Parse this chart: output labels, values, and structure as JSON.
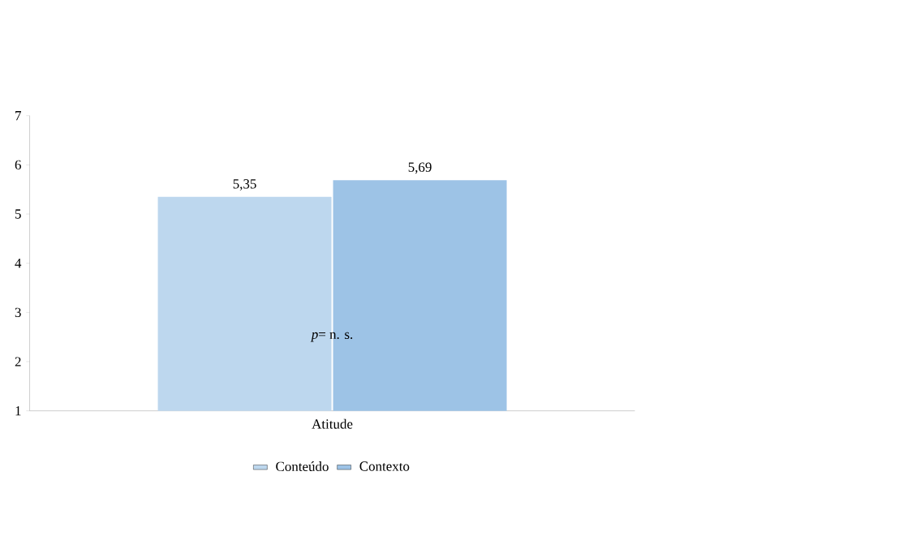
{
  "chart_data": {
    "type": "bar",
    "categories": [
      "Atitude"
    ],
    "series": [
      {
        "name": "Conteúdo",
        "color": "#bdd7ee",
        "values": [
          5.35
        ],
        "value_labels": [
          "5,35"
        ]
      },
      {
        "name": "Contexto",
        "color": "#9dc3e6",
        "values": [
          5.69
        ],
        "value_labels": [
          "5,69"
        ]
      }
    ],
    "ylim": [
      1,
      7
    ],
    "yticks": [
      1,
      2,
      3,
      4,
      5,
      6,
      7
    ],
    "grid": false,
    "legend": "bottom",
    "annotations": [
      "*p*= n. s."
    ]
  }
}
